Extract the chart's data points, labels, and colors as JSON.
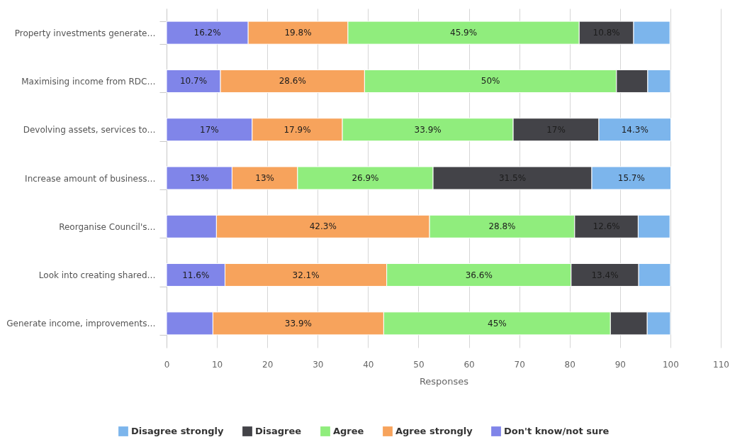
{
  "chart_data": {
    "type": "bar",
    "orientation": "horizontal",
    "stacked": true,
    "categories": [
      "Property investments generate…",
      "Maximising income from RDC…",
      "Devolving assets, services to…",
      "Increase amount of business…",
      "Reorganise Council's…",
      "Look into creating shared…",
      "Generate income, improvements…"
    ],
    "series": [
      {
        "name": "Don't know/not sure",
        "color": "#8085e9",
        "values": [
          16.2,
          10.7,
          17,
          13,
          9.9,
          11.6,
          9.2
        ],
        "value_labels": [
          "16.2%",
          "10.7%",
          "17%",
          "13%",
          null,
          "11.6%",
          null
        ]
      },
      {
        "name": "Agree strongly",
        "color": "#f7a35c",
        "values": [
          19.8,
          28.6,
          17.9,
          13,
          42.3,
          32.1,
          33.9
        ],
        "value_labels": [
          "19.8%",
          "28.6%",
          "17.9%",
          "13%",
          "42.3%",
          "32.1%",
          "33.9%"
        ]
      },
      {
        "name": "Agree",
        "color": "#90ed7d",
        "values": [
          45.9,
          50,
          33.9,
          26.9,
          28.8,
          36.6,
          45
        ],
        "value_labels": [
          "45.9%",
          "50%",
          "33.9%",
          "26.9%",
          "28.8%",
          "36.6%",
          "45%"
        ]
      },
      {
        "name": "Disagree",
        "color": "#434348",
        "values": [
          10.8,
          6.2,
          17,
          31.5,
          12.6,
          13.4,
          7.3
        ],
        "value_labels": [
          "10.8%",
          null,
          "17%",
          "31.5%",
          "12.6%",
          "13.4%",
          null
        ]
      },
      {
        "name": "Disagree strongly",
        "color": "#7cb5ec",
        "values": [
          7.2,
          4.5,
          14.3,
          15.7,
          6.3,
          6.3,
          4.6
        ],
        "value_labels": [
          null,
          null,
          "14.3%",
          "15.7%",
          null,
          null,
          null
        ]
      }
    ],
    "xlabel": "Responses",
    "xlim": [
      0,
      110
    ],
    "xticks": [
      0,
      10,
      20,
      30,
      40,
      50,
      60,
      70,
      80,
      90,
      100,
      110
    ],
    "grid": "x",
    "legend": "bottom"
  }
}
